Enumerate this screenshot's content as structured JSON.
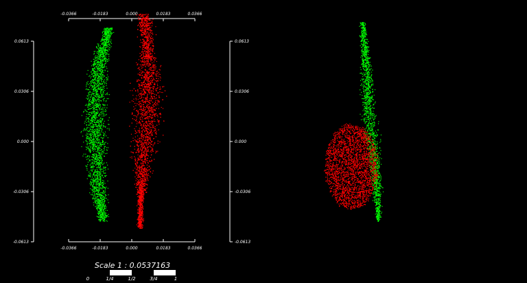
{
  "colors": {
    "background": "#000000",
    "axis": "#ffffff",
    "series_a": "#00ff00",
    "series_b": "#ff0000"
  },
  "view_left": {
    "top_axis_ticks": [
      "-0.0366",
      "-0.0183",
      "0.000",
      "0.0183",
      "0.0366"
    ],
    "bottom_axis_ticks": [
      "-0.0366",
      "-0.0183",
      "0.000",
      "0.0183",
      "0.0366"
    ],
    "left_axis_ticks": [
      "0.0613",
      "0.0306",
      "0.000",
      "-0.0306",
      "-0.0613"
    ]
  },
  "view_right": {
    "left_axis_ticks": [
      "0.0613",
      "0.0306",
      "0.000",
      "-0.0306",
      "-0.0613"
    ]
  },
  "scale_bar": {
    "title": "Scale 1 : 0.0537163",
    "labels": [
      "0",
      "1/4",
      "1/2",
      "3/4",
      "1"
    ]
  }
}
